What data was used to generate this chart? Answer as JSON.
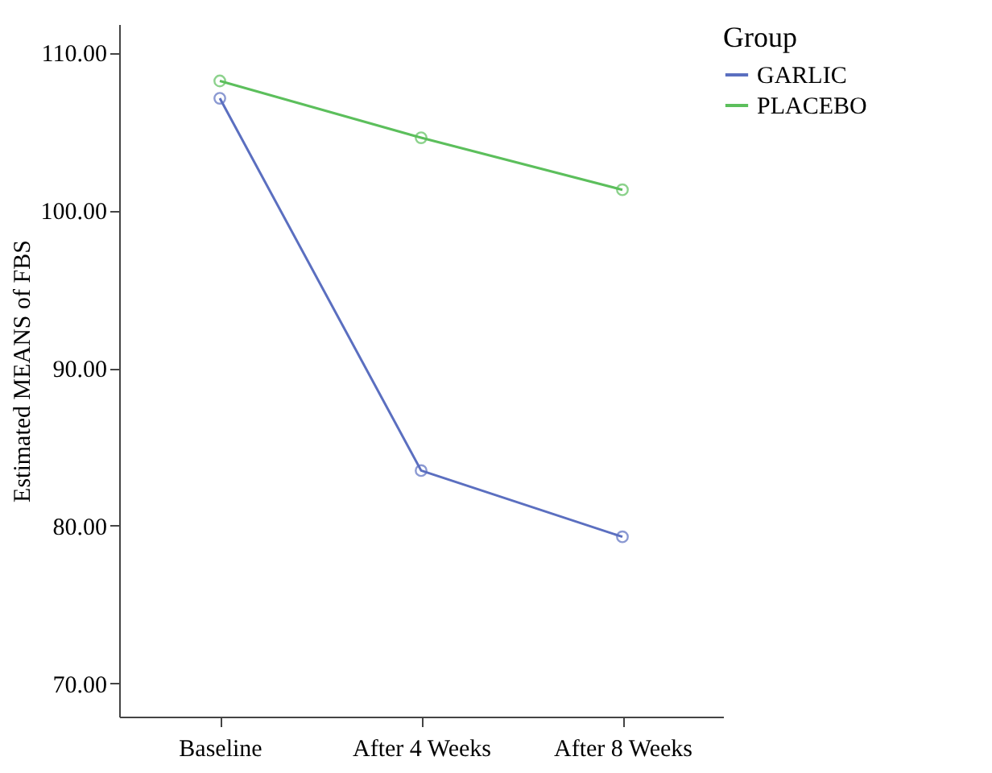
{
  "chart_data": {
    "type": "line",
    "ylabel": "Estimated MEANS of FBS",
    "legend_title": "Group",
    "categories": [
      "Baseline",
      "After 4 Weeks",
      "After 8 Weeks"
    ],
    "series": [
      {
        "name": "GARLIC",
        "color": "#5b6fc0",
        "values": [
          107.1,
          83.5,
          79.3
        ]
      },
      {
        "name": "PLACEBO",
        "color": "#5cbf5c",
        "values": [
          108.2,
          104.6,
          101.3
        ]
      }
    ],
    "ylim": [
      67.9,
      111.8
    ],
    "yticks": [
      {
        "value": 70,
        "label": "70.00"
      },
      {
        "value": 80,
        "label": "80.00"
      },
      {
        "value": 90,
        "label": "90.00"
      },
      {
        "value": 100,
        "label": "100.00"
      },
      {
        "value": 110,
        "label": "110.00"
      }
    ],
    "grid": false,
    "legend": "top right",
    "marker": "circle",
    "line_style": "solid"
  }
}
